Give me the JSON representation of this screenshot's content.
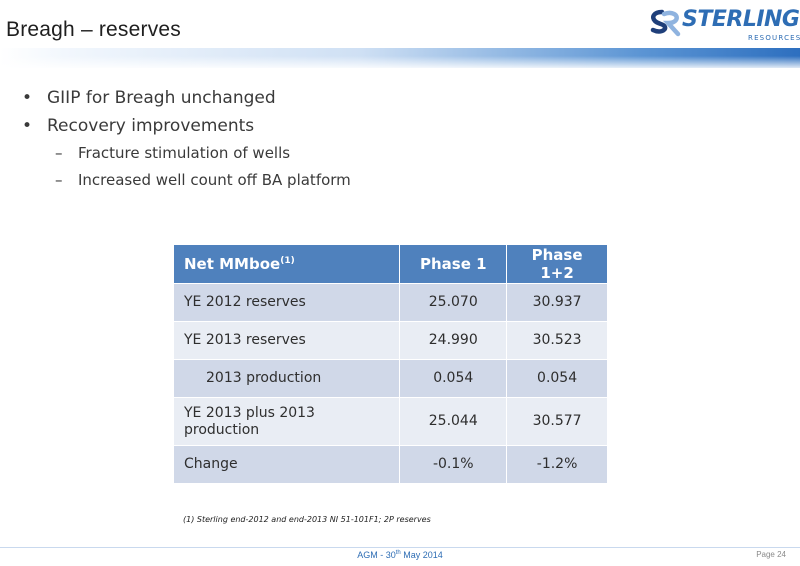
{
  "header": {
    "title": "Breagh – reserves",
    "logo_name": "STERLING",
    "logo_sub": "RESOURCES",
    "accent_color": "#2e6db4"
  },
  "bullets": [
    {
      "level": 1,
      "text": "GIIP for Breagh unchanged"
    },
    {
      "level": 1,
      "text": "Recovery improvements"
    },
    {
      "level": 2,
      "text": "Fracture stimulation of wells"
    },
    {
      "level": 2,
      "text": "Increased well count off BA platform"
    }
  ],
  "table": {
    "header_bg": "#4f81bd",
    "columns": [
      "Net MMboe",
      "Phase 1",
      "Phase 1+2"
    ],
    "first_col_sup": "(1)",
    "rows": [
      [
        "YE 2012 reserves",
        "25.070",
        "30.937"
      ],
      [
        "YE 2013 reserves",
        "24.990",
        "30.523"
      ],
      [
        "2013 production",
        "0.054",
        "0.054"
      ],
      [
        "YE 2013  plus 2013 production",
        "25.044",
        "30.577"
      ],
      [
        "Change",
        "-0.1%",
        "-1.2%"
      ]
    ]
  },
  "footnote": "(1) Sterling end-2012 and end-2013 NI 51-101F1; 2P reserves",
  "footer": {
    "event_prefix": "AGM - 30",
    "event_sup": "th",
    "event_suffix": " May 2014",
    "page": "Page 24"
  }
}
